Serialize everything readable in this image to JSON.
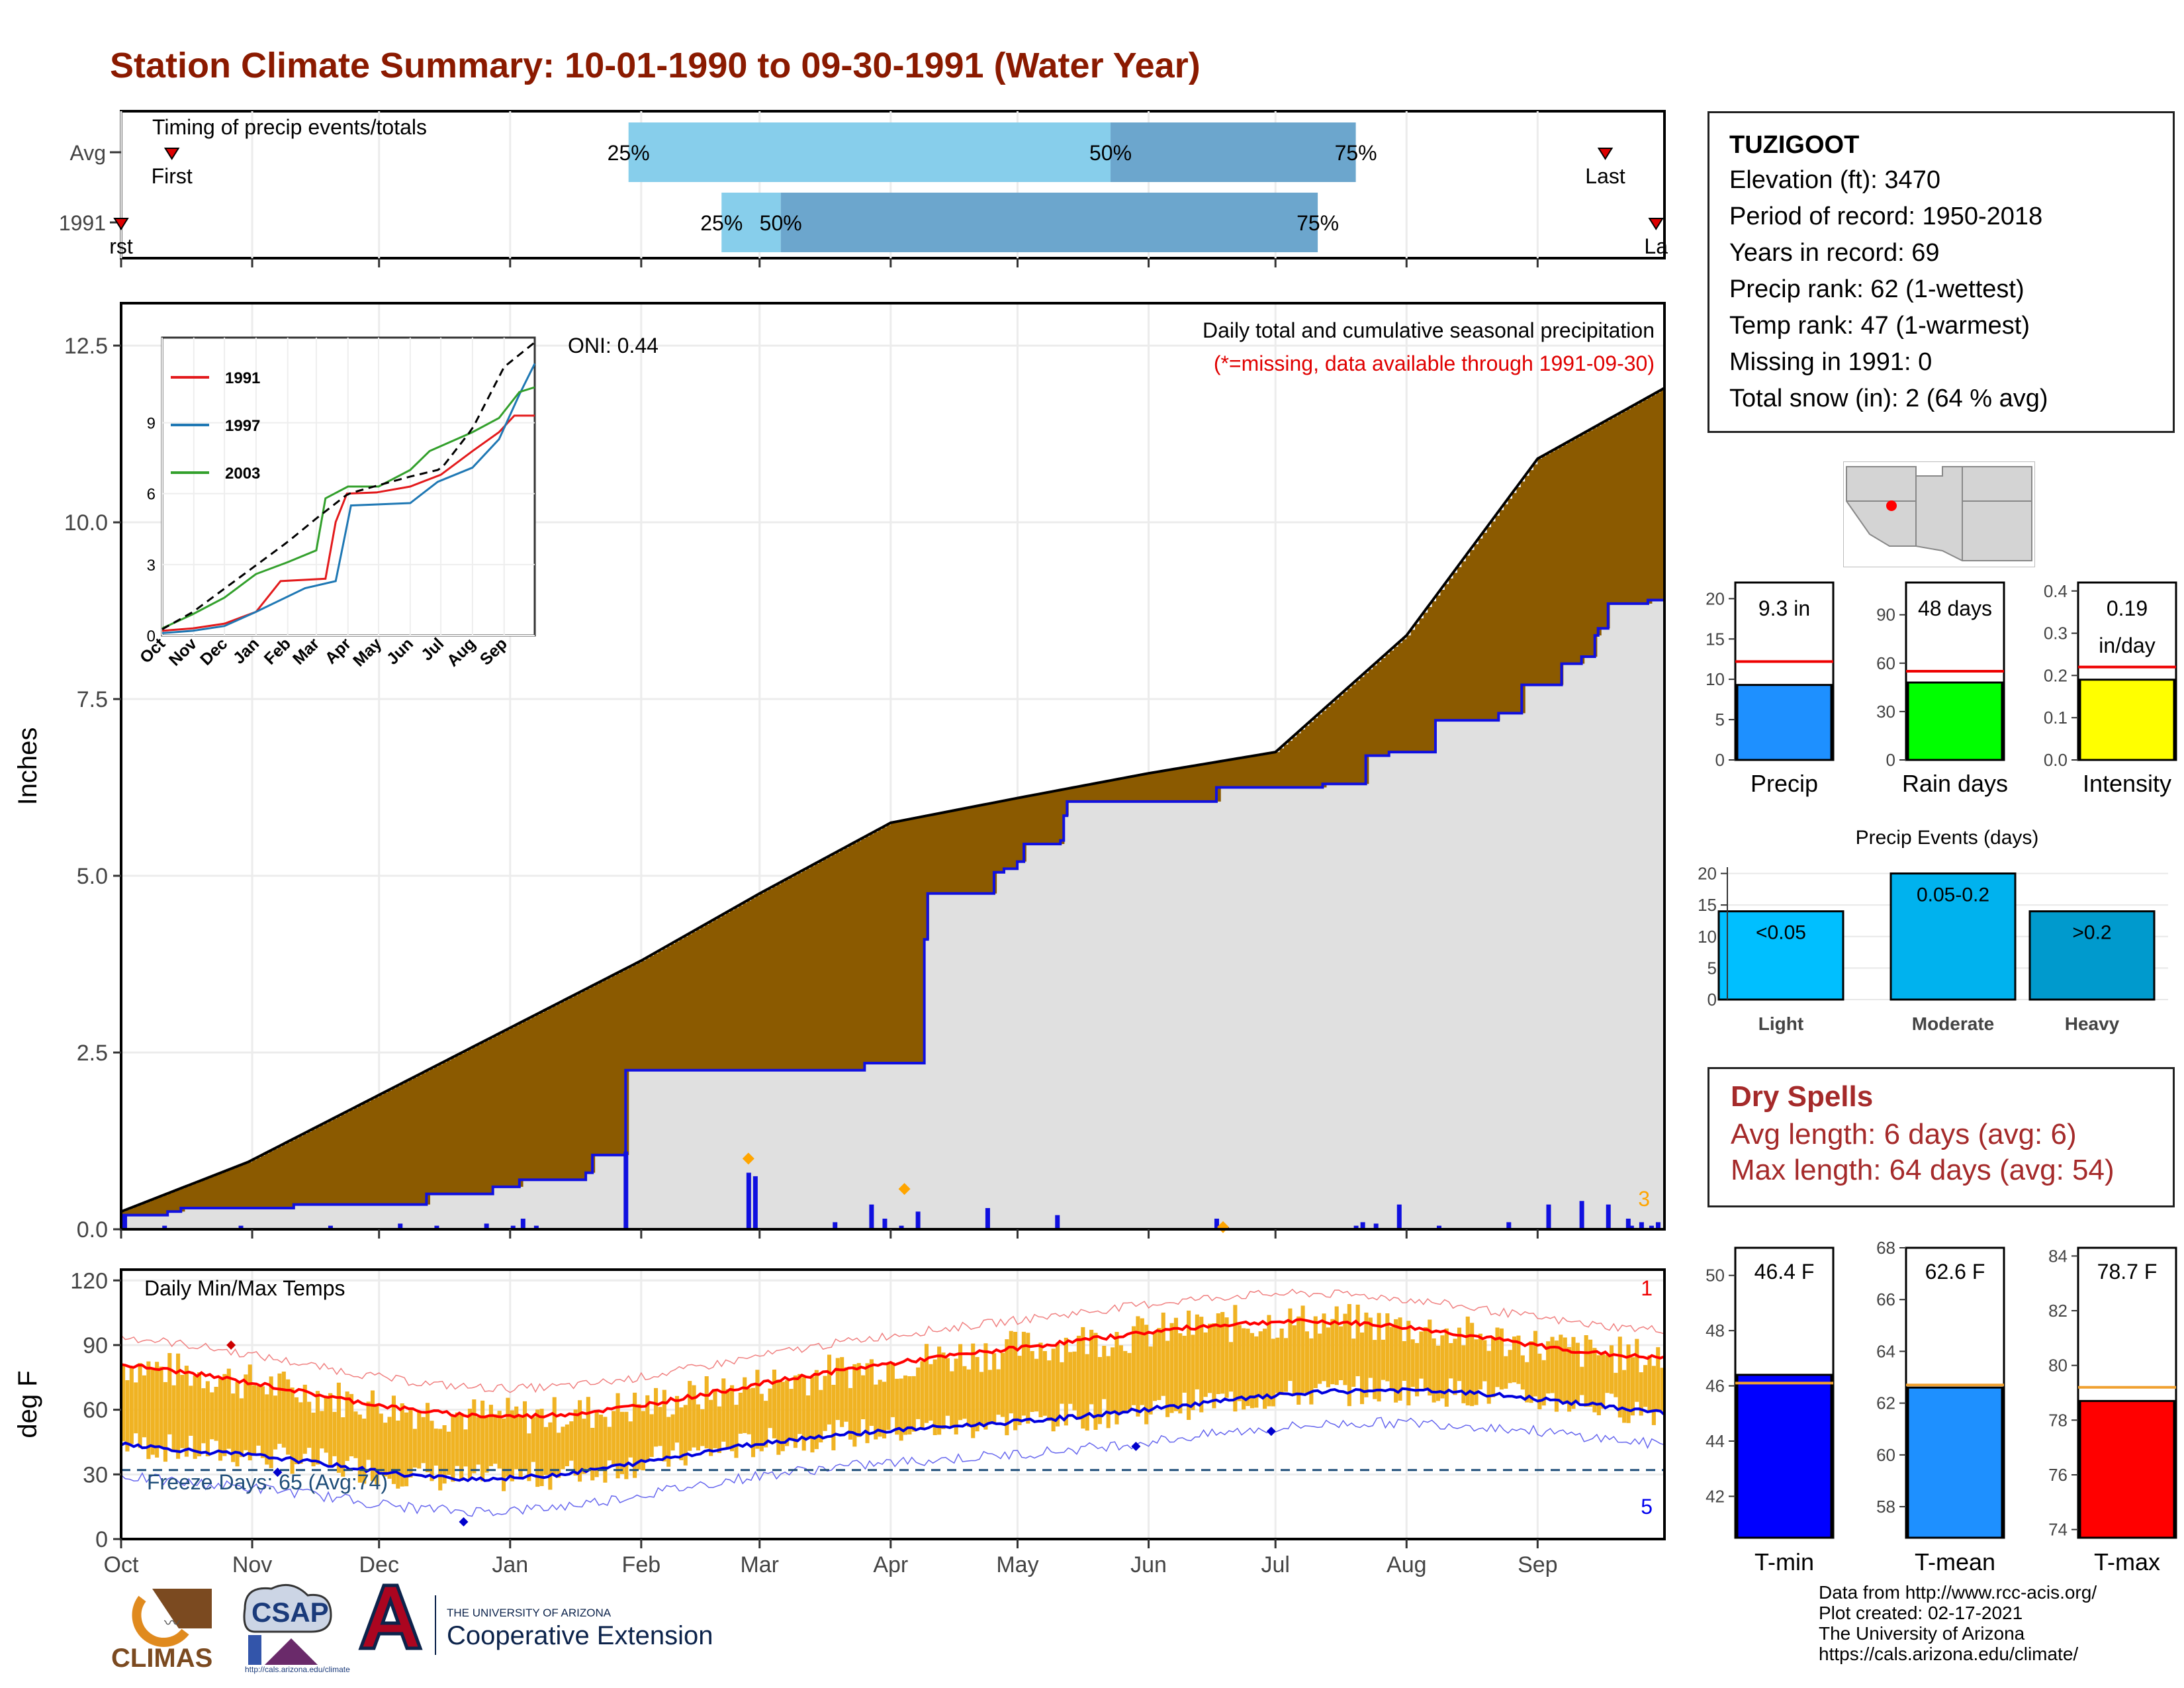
{
  "title": "Station Climate Summary: 10-01-1990 to 09-30-1991 (Water Year)",
  "months": [
    "Oct",
    "Nov",
    "Dec",
    "Jan",
    "Feb",
    "Mar",
    "Apr",
    "May",
    "Jun",
    "Jul",
    "Aug",
    "Sep"
  ],
  "colors": {
    "title": "#8B1A00",
    "accum_brown": "#8B5A00",
    "deficit_green": "#1E8B1E",
    "current_blue": "#1010E0",
    "avg_fill": "#E0E0E0",
    "temp_bar": "#F0B323"
  },
  "station": {
    "name": "TUZIGOOT",
    "lines": [
      "Elevation (ft): 3470",
      "Period of record: 1950-2018",
      "Years in record: 69",
      "Precip rank: 62 (1-wettest)",
      "Temp rank: 47 (1-warmest)",
      "Missing in 1991: 0",
      "Total snow (in): 2 (64 % avg)"
    ]
  },
  "timing": {
    "label": "Timing of precip events/totals",
    "row_labels": [
      "Avg",
      "1991"
    ],
    "first_label": "First",
    "last_label": "Last",
    "first_label_1991": "rst",
    "last_label_1991": "La",
    "pct": [
      "25%",
      "50%",
      "75%"
    ],
    "avg_days": {
      "first": 12,
      "p25": 120,
      "p50": 234,
      "p75": 292,
      "last": 351
    },
    "y1991_days": {
      "first": 0,
      "p25": 142,
      "p50": 156,
      "p75": 283,
      "last": 363
    }
  },
  "precip": {
    "ylabel": "Inches",
    "note1": "Daily total and cumulative seasonal precipitation",
    "note2": "(*=missing, data available through 1991-09-30)",
    "oni": "ONI: 0.44",
    "corner_count": "3",
    "yticks": [
      "0.0",
      "2.5",
      "5.0",
      "7.5",
      "10.0",
      "12.5"
    ],
    "ylim": [
      0,
      13.1
    ]
  },
  "inset": {
    "series": [
      {
        "name": "1991",
        "color": "#E31A1C"
      },
      {
        "name": "1997",
        "color": "#1F78B4"
      },
      {
        "name": "2003",
        "color": "#33A02C"
      }
    ],
    "yticks": [
      "0",
      "3",
      "6",
      "9"
    ],
    "months": [
      "Oct",
      "Nov",
      "Dec",
      "Jan",
      "Feb",
      "Mar",
      "Apr",
      "May",
      "Jun",
      "Jul",
      "Aug",
      "Sep"
    ]
  },
  "temps": {
    "label": "Daily Min/Max Temps",
    "ylabel": "deg F",
    "yticks": [
      "0",
      "30",
      "60",
      "90",
      "120"
    ],
    "freeze": "Freeze Days: 65 (Avg:74)",
    "count_high": "1",
    "count_low": "5"
  },
  "gauges": {
    "top": [
      {
        "name": "Precip",
        "value_text": "9.3 in",
        "value": 9.3,
        "avg": 12.2,
        "ymax": 22,
        "ticks": [
          "0",
          "5",
          "10",
          "15",
          "20"
        ],
        "tickv": [
          0,
          5,
          10,
          15,
          20
        ],
        "color": "#1E90FF"
      },
      {
        "name": "Rain days",
        "value_text": "48 days",
        "value": 48,
        "avg": 55,
        "ymax": 110,
        "ticks": [
          "0",
          "30",
          "60",
          "90"
        ],
        "tickv": [
          0,
          30,
          60,
          90
        ],
        "color": "#00FF00"
      },
      {
        "name": "Intensity",
        "value_text": "0.19\nin/day",
        "value": 0.19,
        "avg": 0.22,
        "ymax": 0.42,
        "ticks": [
          "0.0",
          "0.1",
          "0.2",
          "0.3",
          "0.4"
        ],
        "tickv": [
          0,
          0.1,
          0.2,
          0.3,
          0.4
        ],
        "color": "#FFFF00"
      }
    ],
    "events": {
      "title": "Precip Events (days)",
      "bars": [
        {
          "name": "Light",
          "label": "<0.05",
          "value": 14,
          "color": "#00BFFF"
        },
        {
          "name": "Moderate",
          "label": "0.05-0.2",
          "value": 20,
          "color": "#00B2EE"
        },
        {
          "name": "Heavy",
          "label": ">0.2",
          "value": 14,
          "color": "#009ACD"
        }
      ],
      "ticks": [
        "0",
        "5",
        "10",
        "15",
        "20"
      ]
    },
    "temps": [
      {
        "name": "T-min",
        "value_text": "46.4 F",
        "value": 46.4,
        "avg": 46.1,
        "ymin": 40.5,
        "ymax": 51,
        "ticks": [
          "42",
          "44",
          "46",
          "48",
          "50"
        ],
        "tickv": [
          42,
          44,
          46,
          48,
          50
        ],
        "color": "#0000FF"
      },
      {
        "name": "T-mean",
        "value_text": "62.6 F",
        "value": 62.6,
        "avg": 62.7,
        "ymin": 56.8,
        "ymax": 68,
        "ticks": [
          "58",
          "60",
          "62",
          "64",
          "66",
          "68"
        ],
        "tickv": [
          58,
          60,
          62,
          64,
          66,
          68
        ],
        "color": "#1E90FF"
      },
      {
        "name": "T-max",
        "value_text": "78.7 F",
        "value": 78.7,
        "avg": 79.2,
        "ymin": 73.7,
        "ymax": 84.3,
        "ticks": [
          "74",
          "76",
          "78",
          "80",
          "82",
          "84"
        ],
        "tickv": [
          74,
          76,
          78,
          80,
          82,
          84
        ],
        "color": "#FF0000"
      }
    ]
  },
  "dry": {
    "title": "Dry Spells",
    "avg": "Avg length: 6 days (avg: 6)",
    "max": "Max length: 64 days (avg: 54)"
  },
  "credits": [
    "Data from http://www.rcc-acis.org/",
    "Plot created: 02-17-2021",
    "The University of Arizona",
    "https://cals.arizona.edu/climate/"
  ],
  "logos": {
    "climas": "CLIMAS",
    "csap": "CSAP",
    "csap_url": "http://cals.arizona.edu/climate",
    "ua_small": "THE UNIVERSITY OF ARIZONA",
    "ua_big": "Cooperative Extension"
  },
  "chart_data": [
    {
      "type": "area",
      "title": "Daily total and cumulative seasonal precipitation",
      "ylabel": "Inches",
      "x": [
        "Oct",
        "Nov",
        "Dec",
        "Jan",
        "Feb",
        "Mar",
        "Apr",
        "May",
        "Jun",
        "Jul",
        "Aug",
        "Sep",
        "Sep-end"
      ],
      "series": [
        {
          "name": "average cumulative",
          "values": [
            0.25,
            1.0,
            1.95,
            2.85,
            3.8,
            4.75,
            5.75,
            6.1,
            6.45,
            6.7,
            8.4,
            10.8,
            11.9
          ]
        },
        {
          "name": "1991 cumulative",
          "values": [
            0.2,
            0.3,
            0.5,
            1.05,
            2.25,
            2.35,
            6.05,
            6.05,
            6.25,
            6.25,
            7.3,
            8.85,
            9.3
          ]
        }
      ]
    },
    {
      "type": "line",
      "title": "Daily Min/Max Temps",
      "ylabel": "deg F",
      "ylim": [
        0,
        120
      ],
      "x": [
        "Oct",
        "Nov",
        "Dec",
        "Jan",
        "Feb",
        "Mar",
        "Apr",
        "May",
        "Jun",
        "Jul",
        "Aug",
        "Sep"
      ],
      "series": [
        {
          "name": "avg max",
          "values": [
            86,
            78,
            64,
            57,
            60,
            66,
            73,
            82,
            92,
            100,
            98,
            93
          ]
        },
        {
          "name": "avg min",
          "values": [
            52,
            40,
            32,
            28,
            30,
            33,
            36,
            44,
            54,
            64,
            67,
            60
          ]
        }
      ]
    }
  ]
}
